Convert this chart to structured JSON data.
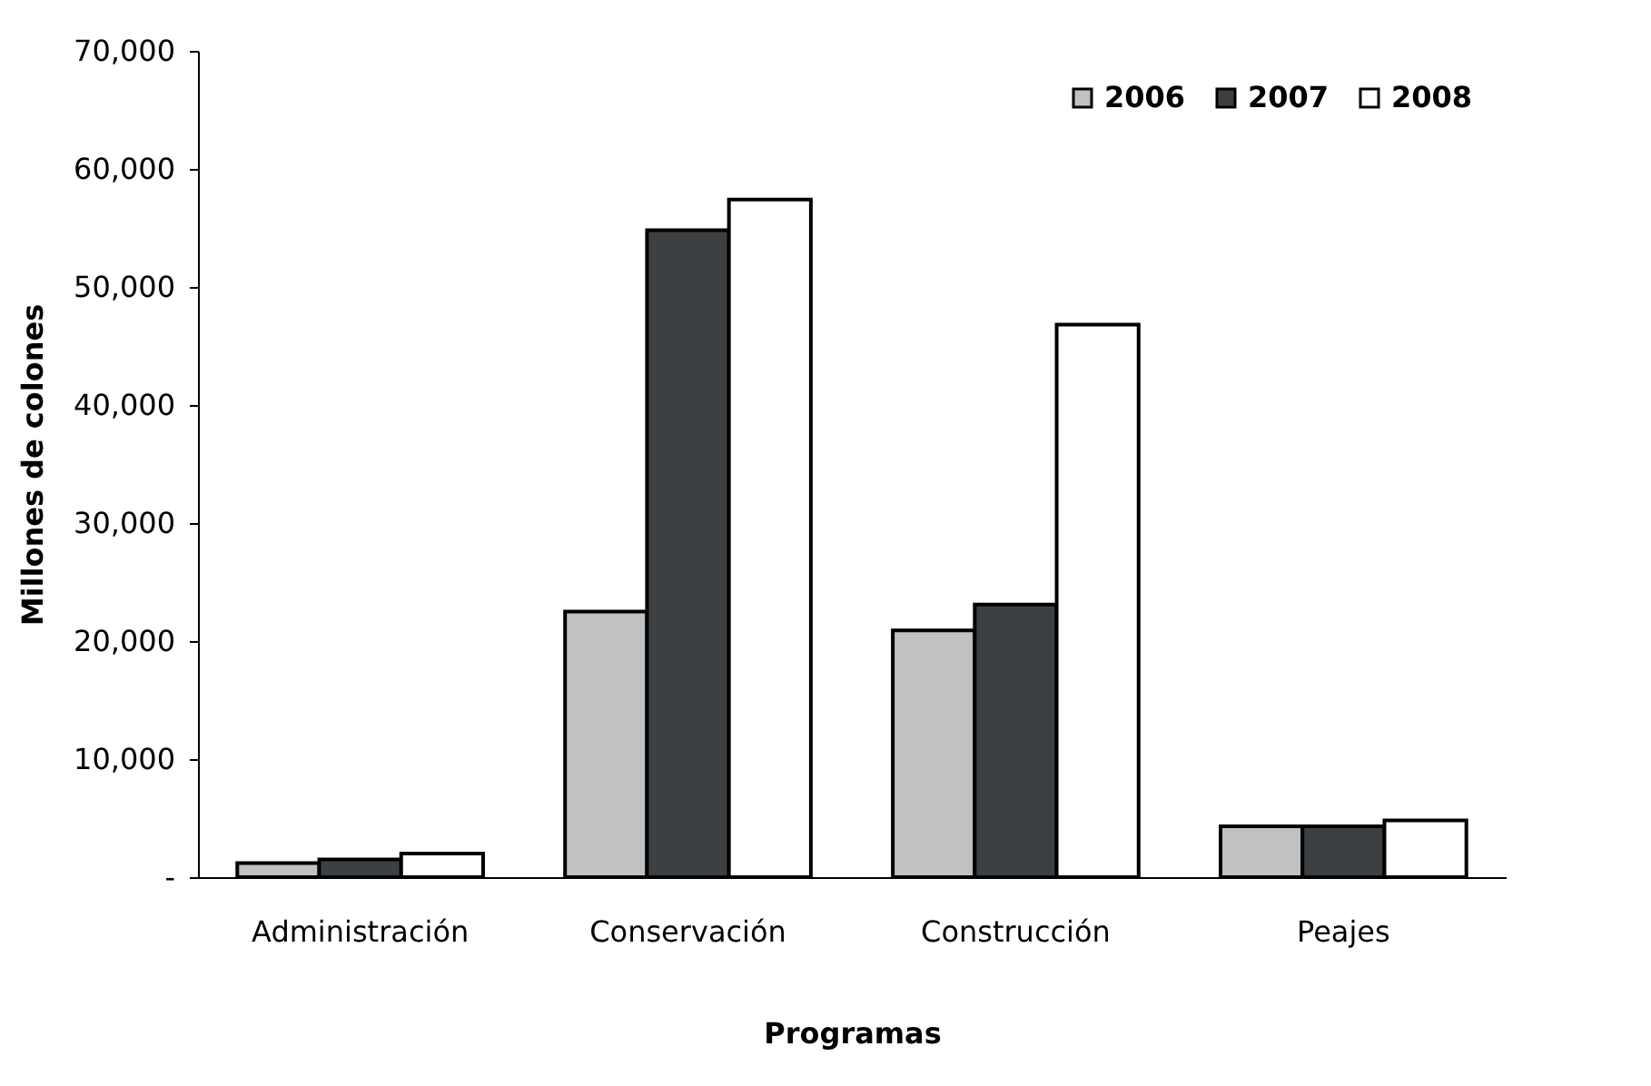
{
  "chart_data": {
    "type": "bar",
    "xlabel": "Programas",
    "ylabel": "Millones de colones",
    "categories": [
      "Administración",
      "Conservación",
      "Construcción",
      "Peajes"
    ],
    "series": [
      {
        "name": "2006",
        "color": "#c0c1c3",
        "values": [
          1200,
          22500,
          20900,
          4300
        ]
      },
      {
        "name": "2007",
        "color": "#3d4043",
        "values": [
          1500,
          54800,
          23100,
          4300
        ]
      },
      {
        "name": "2008",
        "color": "#ffffff",
        "values": [
          2000,
          57400,
          46800,
          4800
        ]
      }
    ],
    "ylim": [
      0,
      70000
    ],
    "yticks": [
      {
        "value": 0,
        "label": "-"
      },
      {
        "value": 10000,
        "label": "10,000"
      },
      {
        "value": 20000,
        "label": "20,000"
      },
      {
        "value": 30000,
        "label": "30,000"
      },
      {
        "value": 40000,
        "label": "40,000"
      },
      {
        "value": 50000,
        "label": "50,000"
      },
      {
        "value": 60000,
        "label": "60,000"
      },
      {
        "value": 70000,
        "label": "70,000"
      }
    ],
    "grid": false,
    "legend": "top right"
  }
}
